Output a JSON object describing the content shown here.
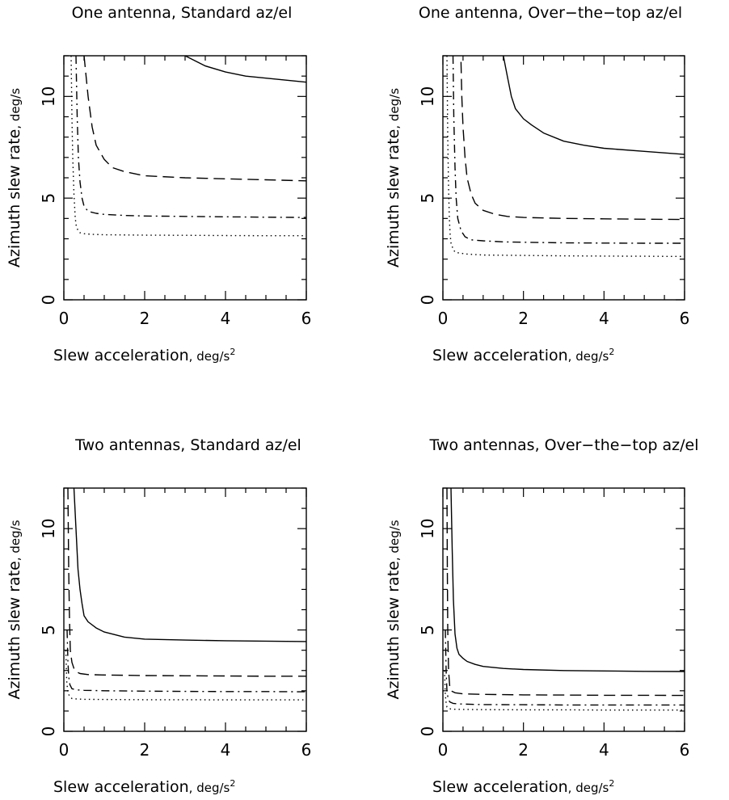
{
  "figure": {
    "background": "#ffffff",
    "ink": "#000000",
    "layout": "2x2 grid"
  },
  "chart_data": [
    {
      "type": "line",
      "title": "One antenna, Standard az/el",
      "xlabel": "Slew acceleration",
      "xunit": ", deg/s",
      "xunit_sup": "2",
      "ylabel": "Azimuth slew rate",
      "yunit": ", deg/s",
      "xlim": [
        0,
        6
      ],
      "ylim": [
        0,
        12
      ],
      "xticks": [
        0,
        2,
        4,
        6
      ],
      "yticks": [
        0,
        5,
        10
      ],
      "series": [
        {
          "style": "solid",
          "x": [
            3.0,
            3.5,
            4.0,
            4.5,
            5.0,
            5.5,
            6.0
          ],
          "y": [
            12.0,
            11.5,
            11.2,
            11.0,
            10.9,
            10.8,
            10.7
          ]
        },
        {
          "style": "dashed",
          "x": [
            0.5,
            0.6,
            0.7,
            0.8,
            1.0,
            1.2,
            1.5,
            2.0,
            3.0,
            4.0,
            5.0,
            6.0
          ],
          "y": [
            12.0,
            10.0,
            8.5,
            7.6,
            6.9,
            6.5,
            6.3,
            6.1,
            6.0,
            5.95,
            5.9,
            5.85
          ]
        },
        {
          "style": "dashdot",
          "x": [
            0.3,
            0.33,
            0.36,
            0.4,
            0.45,
            0.5,
            0.6,
            0.8,
            1.0,
            1.5,
            2.0,
            3.0,
            4.0,
            5.0,
            6.0
          ],
          "y": [
            12.0,
            9.0,
            7.0,
            5.8,
            5.0,
            4.6,
            4.35,
            4.25,
            4.2,
            4.15,
            4.12,
            4.1,
            4.08,
            4.06,
            4.05
          ]
        },
        {
          "style": "dotted",
          "x": [
            0.18,
            0.2,
            0.22,
            0.25,
            0.28,
            0.3,
            0.35,
            0.4,
            0.5,
            0.7,
            1.0,
            2.0,
            3.0,
            4.0,
            5.0,
            6.0
          ],
          "y": [
            12.0,
            9.0,
            7.0,
            5.2,
            4.1,
            3.7,
            3.4,
            3.3,
            3.25,
            3.22,
            3.2,
            3.18,
            3.17,
            3.16,
            3.15,
            3.15
          ]
        }
      ]
    },
    {
      "type": "line",
      "title": "One antenna, Over−the−top az/el",
      "xlabel": "Slew acceleration",
      "xunit": ", deg/s",
      "xunit_sup": "2",
      "ylabel": "Azimuth slew rate",
      "yunit": ", deg/s",
      "xlim": [
        0,
        6
      ],
      "ylim": [
        0,
        12
      ],
      "xticks": [
        0,
        2,
        4,
        6
      ],
      "yticks": [
        0,
        5,
        10
      ],
      "series": [
        {
          "style": "solid",
          "x": [
            1.5,
            1.6,
            1.7,
            1.8,
            2.0,
            2.2,
            2.5,
            3.0,
            3.5,
            4.0,
            5.0,
            6.0
          ],
          "y": [
            12.0,
            11.0,
            10.0,
            9.4,
            8.9,
            8.6,
            8.2,
            7.8,
            7.6,
            7.45,
            7.3,
            7.15
          ]
        },
        {
          "style": "dashed",
          "x": [
            0.45,
            0.47,
            0.5,
            0.55,
            0.6,
            0.7,
            0.8,
            1.0,
            1.3,
            1.6,
            2.0,
            3.0,
            4.0,
            5.0,
            6.0
          ],
          "y": [
            11.7,
            10.0,
            8.5,
            7.0,
            6.0,
            5.2,
            4.75,
            4.4,
            4.2,
            4.1,
            4.05,
            4.0,
            3.98,
            3.96,
            3.95
          ]
        },
        {
          "style": "dashdot",
          "x": [
            0.25,
            0.27,
            0.3,
            0.33,
            0.37,
            0.45,
            0.55,
            0.7,
            1.0,
            1.5,
            2.0,
            3.0,
            4.0,
            5.0,
            6.0
          ],
          "y": [
            12.0,
            9.0,
            6.5,
            5.0,
            4.0,
            3.4,
            3.1,
            2.95,
            2.9,
            2.85,
            2.83,
            2.8,
            2.79,
            2.78,
            2.78
          ]
        },
        {
          "style": "dotted",
          "x": [
            0.1,
            0.12,
            0.14,
            0.16,
            0.18,
            0.2,
            0.25,
            0.3,
            0.4,
            0.6,
            1.0,
            2.0,
            3.0,
            4.0,
            5.0,
            6.0
          ],
          "y": [
            12.0,
            8.0,
            5.5,
            4.0,
            3.2,
            2.8,
            2.5,
            2.35,
            2.3,
            2.25,
            2.2,
            2.18,
            2.16,
            2.15,
            2.14,
            2.13
          ]
        }
      ]
    },
    {
      "type": "line",
      "title": "Two antennas, Standard az/el",
      "xlabel": "Slew acceleration",
      "xunit": ", deg/s",
      "xunit_sup": "2",
      "ylabel": "Azimuth slew rate",
      "yunit": ", deg/s",
      "xlim": [
        0,
        6
      ],
      "ylim": [
        0,
        12
      ],
      "xticks": [
        0,
        2,
        4,
        6
      ],
      "yticks": [
        0,
        5,
        10
      ],
      "series": [
        {
          "style": "solid",
          "x": [
            0.25,
            0.3,
            0.35,
            0.4,
            0.45,
            0.5,
            0.6,
            0.8,
            1.0,
            1.5,
            2.0,
            3.0,
            4.0,
            5.0,
            6.0
          ],
          "y": [
            12.0,
            10.0,
            8.0,
            7.0,
            6.3,
            5.7,
            5.4,
            5.1,
            4.9,
            4.65,
            4.55,
            4.5,
            4.47,
            4.45,
            4.43
          ]
        },
        {
          "style": "dashed",
          "x": [
            0.1,
            0.12,
            0.14,
            0.16,
            0.2,
            0.25,
            0.3,
            0.4,
            0.6,
            1.0,
            2.0,
            3.0,
            4.0,
            5.0,
            6.0
          ],
          "y": [
            12.0,
            8.0,
            5.5,
            4.0,
            3.4,
            3.1,
            2.95,
            2.85,
            2.8,
            2.78,
            2.75,
            2.74,
            2.73,
            2.72,
            2.72
          ]
        },
        {
          "style": "dashdot",
          "x": [
            0.08,
            0.1,
            0.12,
            0.15,
            0.2,
            0.3,
            0.5,
            1.0,
            2.0,
            3.0,
            4.0,
            5.0,
            6.0
          ],
          "y": [
            5.0,
            3.5,
            2.7,
            2.3,
            2.1,
            2.05,
            2.02,
            2.0,
            1.98,
            1.97,
            1.96,
            1.96,
            1.95
          ]
        },
        {
          "style": "dotted",
          "x": [
            0.05,
            0.07,
            0.1,
            0.15,
            0.2,
            0.3,
            0.5,
            1.0,
            2.0,
            3.0,
            4.0,
            5.0,
            6.0
          ],
          "y": [
            4.0,
            2.5,
            1.9,
            1.7,
            1.62,
            1.6,
            1.58,
            1.57,
            1.56,
            1.56,
            1.55,
            1.55,
            1.55
          ]
        }
      ]
    },
    {
      "type": "line",
      "title": "Two antennas, Over−the−top az/el",
      "xlabel": "Slew acceleration",
      "xunit": ", deg/s",
      "xunit_sup": "2",
      "ylabel": "Azimuth slew rate",
      "yunit": ", deg/s",
      "xlim": [
        0,
        6
      ],
      "ylim": [
        0,
        12
      ],
      "xticks": [
        0,
        2,
        4,
        6
      ],
      "yticks": [
        0,
        5,
        10
      ],
      "series": [
        {
          "style": "solid",
          "x": [
            0.2,
            0.23,
            0.26,
            0.3,
            0.35,
            0.4,
            0.5,
            0.6,
            0.8,
            1.0,
            1.5,
            2.0,
            3.0,
            4.0,
            5.0,
            6.0
          ],
          "y": [
            12.0,
            9.0,
            6.5,
            4.8,
            4.1,
            3.8,
            3.6,
            3.45,
            3.3,
            3.2,
            3.1,
            3.05,
            3.0,
            2.98,
            2.96,
            2.95
          ]
        },
        {
          "style": "dashed",
          "x": [
            0.1,
            0.11,
            0.12,
            0.14,
            0.17,
            0.2,
            0.3,
            0.5,
            1.0,
            2.0,
            3.0,
            4.0,
            5.0,
            6.0
          ],
          "y": [
            12.0,
            8.0,
            5.0,
            3.0,
            2.2,
            2.0,
            1.9,
            1.85,
            1.82,
            1.8,
            1.79,
            1.78,
            1.78,
            1.77
          ]
        },
        {
          "style": "dashdot",
          "x": [
            0.06,
            0.08,
            0.1,
            0.13,
            0.17,
            0.25,
            0.4,
            0.7,
            1.0,
            2.0,
            3.0,
            4.0,
            5.0,
            6.0
          ],
          "y": [
            5.0,
            3.0,
            2.0,
            1.6,
            1.45,
            1.38,
            1.35,
            1.33,
            1.32,
            1.31,
            1.3,
            1.3,
            1.3,
            1.3
          ]
        },
        {
          "style": "dotted",
          "x": [
            0.04,
            0.06,
            0.08,
            0.1,
            0.15,
            0.2,
            0.3,
            0.5,
            1.0,
            2.0,
            3.0,
            4.0,
            5.0,
            6.0
          ],
          "y": [
            3.0,
            1.8,
            1.4,
            1.2,
            1.12,
            1.1,
            1.09,
            1.08,
            1.07,
            1.06,
            1.06,
            1.05,
            1.05,
            1.05
          ]
        }
      ]
    }
  ]
}
